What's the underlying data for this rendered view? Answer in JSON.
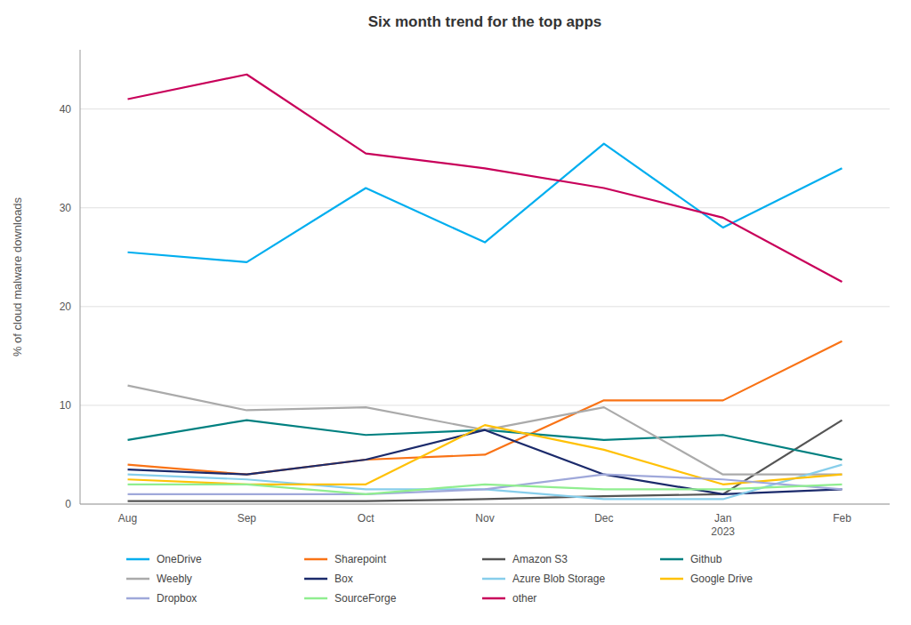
{
  "chart_data": {
    "type": "line",
    "title": "Six month trend for the top apps",
    "y_label": "% of cloud malware downloads",
    "categories": [
      "Aug",
      "Sep",
      "Oct",
      "Nov",
      "Dec",
      "Jan\n2023",
      "Feb"
    ],
    "series": [
      {
        "name": "OneDrive",
        "color": "#00AEEF",
        "values": [
          25.5,
          24.5,
          32.0,
          26.5,
          36.5,
          28.0,
          34.0
        ]
      },
      {
        "name": "Sharepoint",
        "color": "#F97316",
        "values": [
          4.0,
          3.0,
          4.5,
          5.0,
          10.5,
          10.5,
          16.5
        ]
      },
      {
        "name": "Amazon S3",
        "color": "#555555",
        "values": [
          0.3,
          0.3,
          0.3,
          0.5,
          0.8,
          1.0,
          8.5
        ]
      },
      {
        "name": "Github",
        "color": "#008080",
        "values": [
          6.5,
          8.5,
          7.0,
          7.5,
          6.5,
          7.0,
          4.5
        ]
      },
      {
        "name": "Weebly",
        "color": "#AAAAAA",
        "values": [
          12.0,
          9.5,
          9.8,
          7.5,
          9.8,
          3.0,
          3.0
        ]
      },
      {
        "name": "Box",
        "color": "#1B2A6B",
        "values": [
          3.5,
          3.0,
          4.5,
          7.5,
          3.0,
          1.0,
          1.5
        ]
      },
      {
        "name": "Azure Blob Storage",
        "color": "#87CEEB",
        "values": [
          3.0,
          2.5,
          1.5,
          1.5,
          0.5,
          0.5,
          4.0
        ]
      },
      {
        "name": "Google Drive",
        "color": "#FFC107",
        "values": [
          2.5,
          2.0,
          2.0,
          8.0,
          5.5,
          2.0,
          3.0
        ]
      },
      {
        "name": "Dropbox",
        "color": "#9FA8DA",
        "values": [
          1.0,
          1.0,
          1.0,
          1.5,
          3.0,
          2.5,
          1.5
        ]
      },
      {
        "name": "SourceForge",
        "color": "#90EE90",
        "values": [
          2.0,
          2.0,
          1.0,
          2.0,
          1.5,
          1.5,
          2.0
        ]
      },
      {
        "name": "other",
        "color": "#C8005A",
        "values": [
          41.0,
          43.5,
          35.5,
          34.0,
          32.0,
          29.0,
          22.5
        ]
      }
    ],
    "ylim": [
      0,
      46
    ],
    "yticks": [
      0,
      10,
      20,
      30,
      40
    ],
    "grid": true,
    "legend": "bottom"
  }
}
